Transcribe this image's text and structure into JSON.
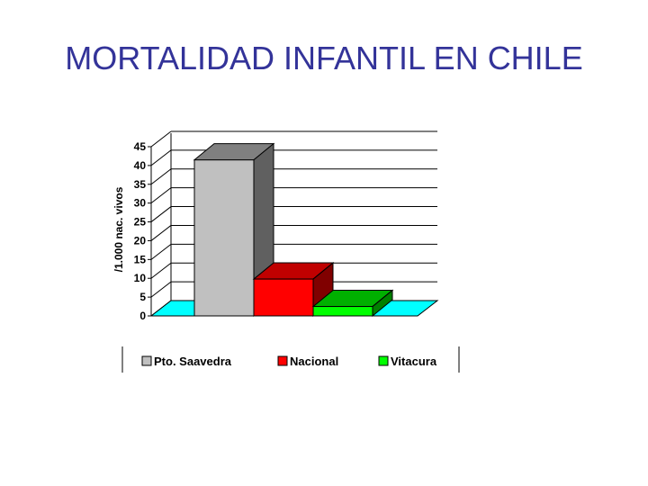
{
  "slide": {
    "title": "MORTALIDAD INFANTIL EN CHILE"
  },
  "chart_data": {
    "type": "bar",
    "style": "3d-column",
    "title": "MORTALIDAD INFANTIL EN CHILE",
    "xlabel": "",
    "ylabel": "/1.000 nac. vivos",
    "ylim": [
      0,
      45
    ],
    "yticks": [
      0,
      5,
      10,
      15,
      20,
      25,
      30,
      35,
      40,
      45
    ],
    "grid": true,
    "legend_position": "bottom",
    "series": [
      {
        "name": "Pto. Saavedra",
        "values": [
          41.5
        ],
        "color": "#c0c0c0",
        "side_color": "#606060",
        "top_color": "#808080"
      },
      {
        "name": "Nacional",
        "values": [
          9.8
        ],
        "color": "#ff0000",
        "side_color": "#800000",
        "top_color": "#c00000"
      },
      {
        "name": "Vitacura",
        "values": [
          2.5
        ],
        "color": "#00ff00",
        "side_color": "#008000",
        "top_color": "#00b000"
      }
    ],
    "floor_color": "#00ffff"
  }
}
